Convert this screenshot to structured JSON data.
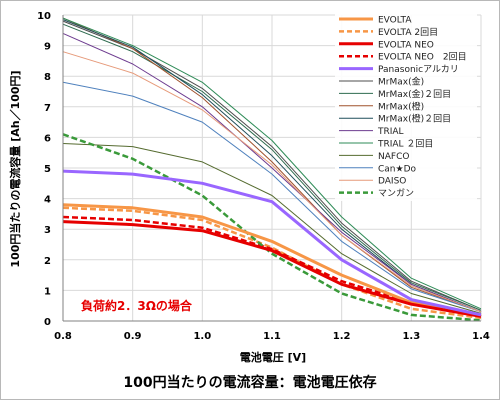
{
  "chart_data": {
    "type": "line",
    "title": "100円当たりの電流容量：電池電圧依存",
    "xlabel": "電池電圧 [V]",
    "ylabel": "100円当たりの電流容量 [Ah／100円]",
    "xlim": [
      0.8,
      1.4
    ],
    "ylim": [
      0,
      10
    ],
    "x": [
      0.8,
      0.9,
      1.0,
      1.1,
      1.2,
      1.3,
      1.4
    ],
    "grid": true,
    "legend_position": "top-right",
    "annotation": {
      "text": "負荷約2．3Ωの場合",
      "color": "#e60000"
    },
    "series": [
      {
        "name": "EVOLTA",
        "color": "#f79646",
        "dash": "",
        "width": 3,
        "values": [
          3.8,
          3.7,
          3.4,
          2.6,
          1.5,
          0.6,
          0.2
        ]
      },
      {
        "name": "EVOLTA 2回目",
        "color": "#f79646",
        "dash": "6,3",
        "width": 2.5,
        "values": [
          3.7,
          3.6,
          3.3,
          2.4,
          1.2,
          0.4,
          0.1
        ]
      },
      {
        "name": "EVOLTA NEO",
        "color": "#e60000",
        "dash": "",
        "width": 3,
        "values": [
          3.25,
          3.15,
          2.95,
          2.3,
          1.2,
          0.55,
          0.15
        ]
      },
      {
        "name": "EVOLTA NEO　2回目",
        "color": "#e60000",
        "dash": "6,3",
        "width": 2.5,
        "values": [
          3.4,
          3.3,
          3.05,
          2.35,
          1.3,
          0.6,
          0.15
        ]
      },
      {
        "name": "Panasonicアルカリ",
        "color": "#9966ff",
        "dash": "",
        "width": 3,
        "values": [
          4.9,
          4.8,
          4.5,
          3.9,
          2.0,
          0.7,
          0.2
        ]
      },
      {
        "name": "MrMax(金)",
        "color": "#4d4d4d",
        "dash": "",
        "width": 1,
        "values": [
          9.8,
          8.9,
          7.6,
          5.7,
          3.2,
          1.3,
          0.35
        ]
      },
      {
        "name": "MrMax(金)２回目",
        "color": "#2e6b4f",
        "dash": "",
        "width": 1,
        "values": [
          9.7,
          8.8,
          7.5,
          5.6,
          3.1,
          1.25,
          0.35
        ]
      },
      {
        "name": "MrMax(橙)",
        "color": "#a0522d",
        "dash": "",
        "width": 1,
        "values": [
          9.9,
          8.9,
          7.3,
          5.2,
          2.8,
          1.1,
          0.3
        ]
      },
      {
        "name": "MrMax(橙)２回目",
        "color": "#1f4e5a",
        "dash": "",
        "width": 1,
        "values": [
          9.85,
          8.95,
          7.4,
          5.4,
          3.0,
          1.2,
          0.3
        ]
      },
      {
        "name": "TRIAL",
        "color": "#6d3b8f",
        "dash": "",
        "width": 1,
        "values": [
          9.4,
          8.4,
          7.0,
          5.0,
          2.9,
          1.2,
          0.3
        ]
      },
      {
        "name": "TRIAL ２回目",
        "color": "#2e8b57",
        "dash": "",
        "width": 1,
        "values": [
          9.9,
          9.0,
          7.8,
          5.9,
          3.4,
          1.4,
          0.4
        ]
      },
      {
        "name": "NAFCO",
        "color": "#556b2f",
        "dash": "",
        "width": 1,
        "values": [
          5.8,
          5.7,
          5.2,
          4.1,
          2.2,
          0.9,
          0.25
        ]
      },
      {
        "name": "Can★Do",
        "color": "#4f81bd",
        "dash": "",
        "width": 1,
        "values": [
          7.8,
          7.35,
          6.5,
          4.8,
          2.6,
          1.05,
          0.3
        ]
      },
      {
        "name": "DAISO",
        "color": "#e69a7a",
        "dash": "",
        "width": 1,
        "values": [
          8.8,
          8.1,
          6.9,
          5.1,
          2.8,
          1.15,
          0.3
        ]
      },
      {
        "name": "マンガン",
        "color": "#3a9a3a",
        "dash": "6,3",
        "width": 2.5,
        "values": [
          6.1,
          5.3,
          4.1,
          2.2,
          0.9,
          0.2,
          0.02
        ]
      }
    ]
  }
}
